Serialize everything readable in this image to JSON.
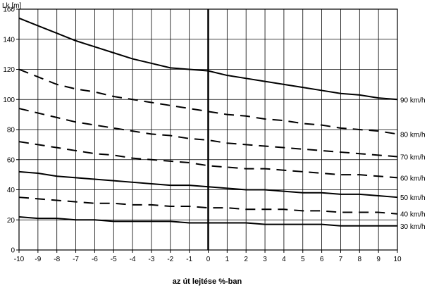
{
  "chart_data": {
    "type": "line",
    "ylabel": "Lk [m]",
    "xlabel": "az út lejtése %-ban",
    "xlim": [
      -10,
      10
    ],
    "ylim": [
      0,
      160
    ],
    "x_ticks": [
      -10,
      -9,
      -8,
      -7,
      -6,
      -5,
      -4,
      -3,
      -2,
      -1,
      0,
      1,
      2,
      3,
      4,
      5,
      6,
      7,
      8,
      9,
      10
    ],
    "y_ticks": [
      0,
      20,
      40,
      60,
      80,
      100,
      120,
      140,
      160
    ],
    "grid": true,
    "x": [
      -10,
      -9,
      -8,
      -7,
      -6,
      -5,
      -4,
      -3,
      -2,
      -1,
      0,
      1,
      2,
      3,
      4,
      5,
      6,
      7,
      8,
      9,
      10
    ],
    "series": [
      {
        "name": "90 km/h",
        "style": "solid",
        "values": [
          154,
          149,
          144,
          139,
          135,
          131,
          127,
          124,
          121,
          120,
          119,
          116,
          114,
          112,
          110,
          108,
          106,
          104,
          103,
          101,
          100
        ]
      },
      {
        "name": "80 km/h",
        "style": "dashed",
        "values": [
          120,
          115,
          110,
          107,
          105,
          102,
          100,
          98,
          96,
          94,
          92,
          90,
          89,
          87,
          86,
          84,
          83,
          81,
          80,
          79,
          77
        ]
      },
      {
        "name": "70 km/h",
        "style": "dashed",
        "values": [
          94,
          91,
          88,
          85,
          83,
          81,
          79,
          77,
          76,
          74,
          73,
          71,
          70,
          69,
          68,
          67,
          66,
          65,
          64,
          63,
          62
        ]
      },
      {
        "name": "60 km/h",
        "style": "dashed",
        "values": [
          72,
          70,
          68,
          66,
          64,
          63,
          61,
          60,
          59,
          58,
          56,
          55,
          54,
          54,
          53,
          52,
          51,
          50,
          50,
          49,
          48
        ]
      },
      {
        "name": "50 km/h",
        "style": "solid",
        "values": [
          52,
          51,
          49,
          48,
          47,
          46,
          45,
          44,
          43,
          43,
          42,
          41,
          40,
          40,
          39,
          38,
          38,
          37,
          37,
          36,
          35
        ]
      },
      {
        "name": "40 km/h",
        "style": "dashed",
        "values": [
          35,
          34,
          33,
          32,
          31,
          31,
          30,
          30,
          29,
          29,
          28,
          28,
          27,
          27,
          27,
          26,
          26,
          25,
          25,
          25,
          24
        ]
      },
      {
        "name": "30 km/h",
        "style": "solid",
        "values": [
          22,
          21,
          21,
          20,
          20,
          19,
          19,
          19,
          19,
          18,
          18,
          18,
          18,
          17,
          17,
          17,
          17,
          16,
          16,
          16,
          16
        ]
      }
    ],
    "colors": {
      "line": "#000000",
      "grid": "#000000",
      "background": "#ffffff"
    }
  }
}
